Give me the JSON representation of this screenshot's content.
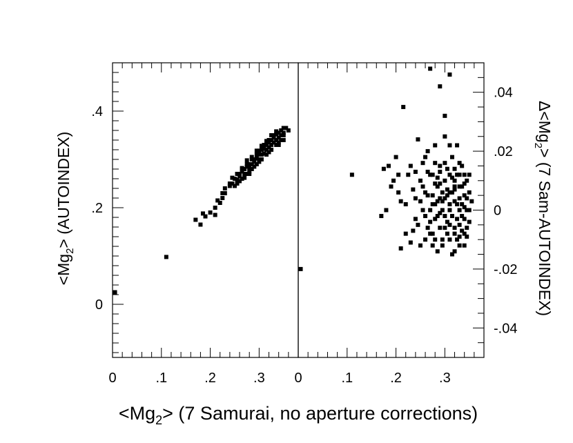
{
  "chart_data": [
    {
      "type": "scatter",
      "panel": "left",
      "xlabel_main": "<Mg",
      "xlabel_sub": "2",
      "xlabel_rest": "> (7 Samurai, no aperture corrections)",
      "ylabel_main": "<Mg",
      "ylabel_sub": "2",
      "ylabel_rest": "> (AUTOINDEX)",
      "xlim": [
        0,
        0.38
      ],
      "ylim": [
        -0.11,
        0.5
      ],
      "x_ticks": [
        {
          "v": 0,
          "label": "0"
        },
        {
          "v": 0.1,
          "label": ".1"
        },
        {
          "v": 0.2,
          "label": ".2"
        },
        {
          "v": 0.3,
          "label": ".3"
        }
      ],
      "y_ticks": [
        {
          "v": 0,
          "label": "0"
        },
        {
          "v": 0.2,
          "label": ".2"
        },
        {
          "v": 0.4,
          "label": ".4"
        }
      ],
      "points": [
        [
          0.005,
          0.025
        ],
        [
          0.11,
          0.098
        ],
        [
          0.17,
          0.175
        ],
        [
          0.18,
          0.165
        ],
        [
          0.185,
          0.188
        ],
        [
          0.19,
          0.182
        ],
        [
          0.2,
          0.19
        ],
        [
          0.21,
          0.2
        ],
        [
          0.215,
          0.215
        ],
        [
          0.22,
          0.21
        ],
        [
          0.225,
          0.22
        ],
        [
          0.21,
          0.185
        ],
        [
          0.225,
          0.23
        ],
        [
          0.23,
          0.24
        ],
        [
          0.24,
          0.245
        ],
        [
          0.245,
          0.25
        ],
        [
          0.25,
          0.26
        ],
        [
          0.255,
          0.258
        ],
        [
          0.26,
          0.27
        ],
        [
          0.26,
          0.265
        ],
        [
          0.265,
          0.275
        ],
        [
          0.265,
          0.282
        ],
        [
          0.27,
          0.28
        ],
        [
          0.27,
          0.27
        ],
        [
          0.275,
          0.285
        ],
        [
          0.275,
          0.29
        ],
        [
          0.28,
          0.29
        ],
        [
          0.28,
          0.282
        ],
        [
          0.285,
          0.3
        ],
        [
          0.285,
          0.29
        ],
        [
          0.29,
          0.3
        ],
        [
          0.29,
          0.295
        ],
        [
          0.295,
          0.31
        ],
        [
          0.295,
          0.302
        ],
        [
          0.3,
          0.31
        ],
        [
          0.3,
          0.318
        ],
        [
          0.305,
          0.32
        ],
        [
          0.305,
          0.31
        ],
        [
          0.31,
          0.322
        ],
        [
          0.31,
          0.33
        ],
        [
          0.315,
          0.33
        ],
        [
          0.315,
          0.32
        ],
        [
          0.32,
          0.335
        ],
        [
          0.32,
          0.34
        ],
        [
          0.325,
          0.34
        ],
        [
          0.325,
          0.33
        ],
        [
          0.33,
          0.345
        ],
        [
          0.33,
          0.35
        ],
        [
          0.335,
          0.352
        ],
        [
          0.335,
          0.34
        ],
        [
          0.34,
          0.355
        ],
        [
          0.34,
          0.345
        ],
        [
          0.345,
          0.36
        ],
        [
          0.35,
          0.365
        ],
        [
          0.355,
          0.365
        ],
        [
          0.26,
          0.255
        ],
        [
          0.27,
          0.262
        ],
        [
          0.28,
          0.275
        ],
        [
          0.29,
          0.285
        ],
        [
          0.3,
          0.3
        ],
        [
          0.31,
          0.312
        ],
        [
          0.32,
          0.325
        ],
        [
          0.33,
          0.335
        ],
        [
          0.34,
          0.335
        ],
        [
          0.25,
          0.245
        ],
        [
          0.255,
          0.25
        ],
        [
          0.265,
          0.26
        ],
        [
          0.275,
          0.27
        ],
        [
          0.285,
          0.28
        ],
        [
          0.295,
          0.29
        ],
        [
          0.305,
          0.3
        ],
        [
          0.315,
          0.31
        ],
        [
          0.325,
          0.32
        ],
        [
          0.335,
          0.33
        ],
        [
          0.345,
          0.34
        ],
        [
          0.35,
          0.35
        ],
        [
          0.24,
          0.25
        ],
        [
          0.245,
          0.262
        ],
        [
          0.255,
          0.27
        ],
        [
          0.265,
          0.28
        ],
        [
          0.275,
          0.298
        ],
        [
          0.285,
          0.305
        ],
        [
          0.295,
          0.318
        ],
        [
          0.305,
          0.328
        ],
        [
          0.315,
          0.338
        ],
        [
          0.325,
          0.35
        ],
        [
          0.335,
          0.358
        ],
        [
          0.345,
          0.35
        ],
        [
          0.35,
          0.34
        ],
        [
          0.36,
          0.36
        ],
        [
          0.23,
          0.23
        ],
        [
          0.28,
          0.27
        ],
        [
          0.3,
          0.295
        ],
        [
          0.32,
          0.315
        ],
        [
          0.34,
          0.33
        ],
        [
          0.35,
          0.355
        ]
      ]
    },
    {
      "type": "scatter",
      "panel": "right",
      "ylabel_main": "Δ<Mg",
      "ylabel_sub": "2",
      "ylabel_rest": "> (7 Sam-AUTOINDEX)",
      "xlim": [
        0,
        0.38
      ],
      "ylim": [
        -0.05,
        0.05
      ],
      "x_ticks": [
        {
          "v": 0,
          "label": "0"
        },
        {
          "v": 0.1,
          "label": ".1"
        },
        {
          "v": 0.2,
          "label": ".2"
        },
        {
          "v": 0.3,
          "label": ".3"
        }
      ],
      "y_ticks": [
        {
          "v": 0.04,
          "label": ".04"
        },
        {
          "v": 0.02,
          "label": ".02"
        },
        {
          "v": 0,
          "label": "0"
        },
        {
          "v": -0.02,
          "label": "-.02"
        },
        {
          "v": -0.04,
          "label": "-.04"
        }
      ],
      "points": [
        [
          0.005,
          -0.02
        ],
        [
          0.11,
          0.012
        ],
        [
          0.17,
          -0.002
        ],
        [
          0.175,
          0.014
        ],
        [
          0.18,
          0.0
        ],
        [
          0.185,
          0.015
        ],
        [
          0.19,
          0.008
        ],
        [
          0.195,
          0.01
        ],
        [
          0.2,
          0.018
        ],
        [
          0.205,
          0.012
        ],
        [
          0.205,
          0.006
        ],
        [
          0.21,
          0.003
        ],
        [
          0.21,
          -0.013
        ],
        [
          0.215,
          0.035
        ],
        [
          0.22,
          0.002
        ],
        [
          0.22,
          -0.008
        ],
        [
          0.225,
          0.012
        ],
        [
          0.23,
          0.015
        ],
        [
          0.23,
          -0.011
        ],
        [
          0.235,
          0.007
        ],
        [
          0.24,
          0.013
        ],
        [
          0.24,
          -0.003
        ],
        [
          0.245,
          0.024
        ],
        [
          0.245,
          -0.005
        ],
        [
          0.25,
          0.01
        ],
        [
          0.25,
          -0.012
        ],
        [
          0.255,
          0.0
        ],
        [
          0.255,
          0.016
        ],
        [
          0.26,
          0.018
        ],
        [
          0.26,
          -0.01
        ],
        [
          0.265,
          0.005
        ],
        [
          0.265,
          0.02
        ],
        [
          0.27,
          0.048
        ],
        [
          0.27,
          -0.008
        ],
        [
          0.275,
          0.002
        ],
        [
          0.275,
          0.012
        ],
        [
          0.28,
          0.022
        ],
        [
          0.28,
          -0.003
        ],
        [
          0.285,
          0.008
        ],
        [
          0.285,
          -0.014
        ],
        [
          0.29,
          0.042
        ],
        [
          0.29,
          0.015
        ],
        [
          0.295,
          0.0
        ],
        [
          0.295,
          -0.01
        ],
        [
          0.3,
          0.032
        ],
        [
          0.3,
          0.025
        ],
        [
          0.305,
          0.005
        ],
        [
          0.305,
          -0.004
        ],
        [
          0.31,
          0.046
        ],
        [
          0.31,
          0.012
        ],
        [
          0.315,
          -0.015
        ],
        [
          0.315,
          0.018
        ],
        [
          0.32,
          0.008
        ],
        [
          0.32,
          -0.006
        ],
        [
          0.325,
          0.022
        ],
        [
          0.325,
          0.002
        ],
        [
          0.33,
          0.012
        ],
        [
          0.33,
          -0.012
        ],
        [
          0.335,
          0.015
        ],
        [
          0.335,
          -0.002
        ],
        [
          0.34,
          0.005
        ],
        [
          0.34,
          -0.008
        ],
        [
          0.345,
          0.01
        ],
        [
          0.345,
          0.0
        ],
        [
          0.35,
          -0.004
        ],
        [
          0.35,
          0.012
        ],
        [
          0.355,
          0.003
        ],
        [
          0.26,
          0.006
        ],
        [
          0.27,
          0.0
        ],
        [
          0.28,
          0.009
        ],
        [
          0.29,
          0.004
        ],
        [
          0.3,
          0.01
        ],
        [
          0.31,
          0.002
        ],
        [
          0.32,
          0.014
        ],
        [
          0.33,
          0.004
        ],
        [
          0.34,
          0.012
        ],
        [
          0.265,
          -0.006
        ],
        [
          0.275,
          -0.012
        ],
        [
          0.285,
          -0.002
        ],
        [
          0.295,
          0.006
        ],
        [
          0.305,
          0.014
        ],
        [
          0.315,
          0.006
        ],
        [
          0.325,
          -0.01
        ],
        [
          0.335,
          0.008
        ],
        [
          0.345,
          -0.006
        ],
        [
          0.255,
          0.008
        ],
        [
          0.27,
          0.012
        ],
        [
          0.29,
          -0.006
        ],
        [
          0.31,
          -0.01
        ],
        [
          0.33,
          0.0
        ],
        [
          0.3,
          -0.002
        ],
        [
          0.32,
          -0.014
        ],
        [
          0.28,
          0.016
        ],
        [
          0.24,
          0.004
        ],
        [
          0.235,
          -0.007
        ],
        [
          0.31,
          0.022
        ],
        [
          0.32,
          0.003
        ],
        [
          0.33,
          0.008
        ],
        [
          0.34,
          -0.003
        ],
        [
          0.35,
          0.0
        ],
        [
          0.3,
          0.004
        ],
        [
          0.29,
          0.009
        ],
        [
          0.31,
          -0.005
        ],
        [
          0.325,
          0.012
        ],
        [
          0.335,
          -0.007
        ],
        [
          0.345,
          0.004
        ],
        [
          0.315,
          0.011
        ],
        [
          0.305,
          -0.008
        ],
        [
          0.295,
          -0.012
        ],
        [
          0.285,
          0.011
        ],
        [
          0.275,
          0.005
        ],
        [
          0.265,
          0.013
        ],
        [
          0.25,
          0.003
        ],
        [
          0.26,
          -0.002
        ],
        [
          0.27,
          -0.004
        ],
        [
          0.28,
          0.002
        ],
        [
          0.29,
          -0.001
        ],
        [
          0.3,
          0.016
        ],
        [
          0.31,
          0.0
        ],
        [
          0.32,
          0.007
        ],
        [
          0.33,
          -0.005
        ],
        [
          0.34,
          0.009
        ],
        [
          0.325,
          -0.003
        ],
        [
          0.335,
          0.002
        ],
        [
          0.315,
          -0.002
        ],
        [
          0.305,
          0.007
        ],
        [
          0.345,
          -0.009
        ],
        [
          0.32,
          0.01
        ],
        [
          0.33,
          0.016
        ],
        [
          0.34,
          0.001
        ],
        [
          0.35,
          0.006
        ],
        [
          0.3,
          -0.006
        ],
        [
          0.29,
          0.013
        ],
        [
          0.285,
          0.003
        ],
        [
          0.275,
          -0.008
        ],
        [
          0.28,
          -0.01
        ],
        [
          0.295,
          0.003
        ],
        [
          0.31,
          0.006
        ],
        [
          0.32,
          -0.008
        ],
        [
          0.33,
          -0.009
        ],
        [
          0.34,
          -0.012
        ]
      ]
    }
  ]
}
